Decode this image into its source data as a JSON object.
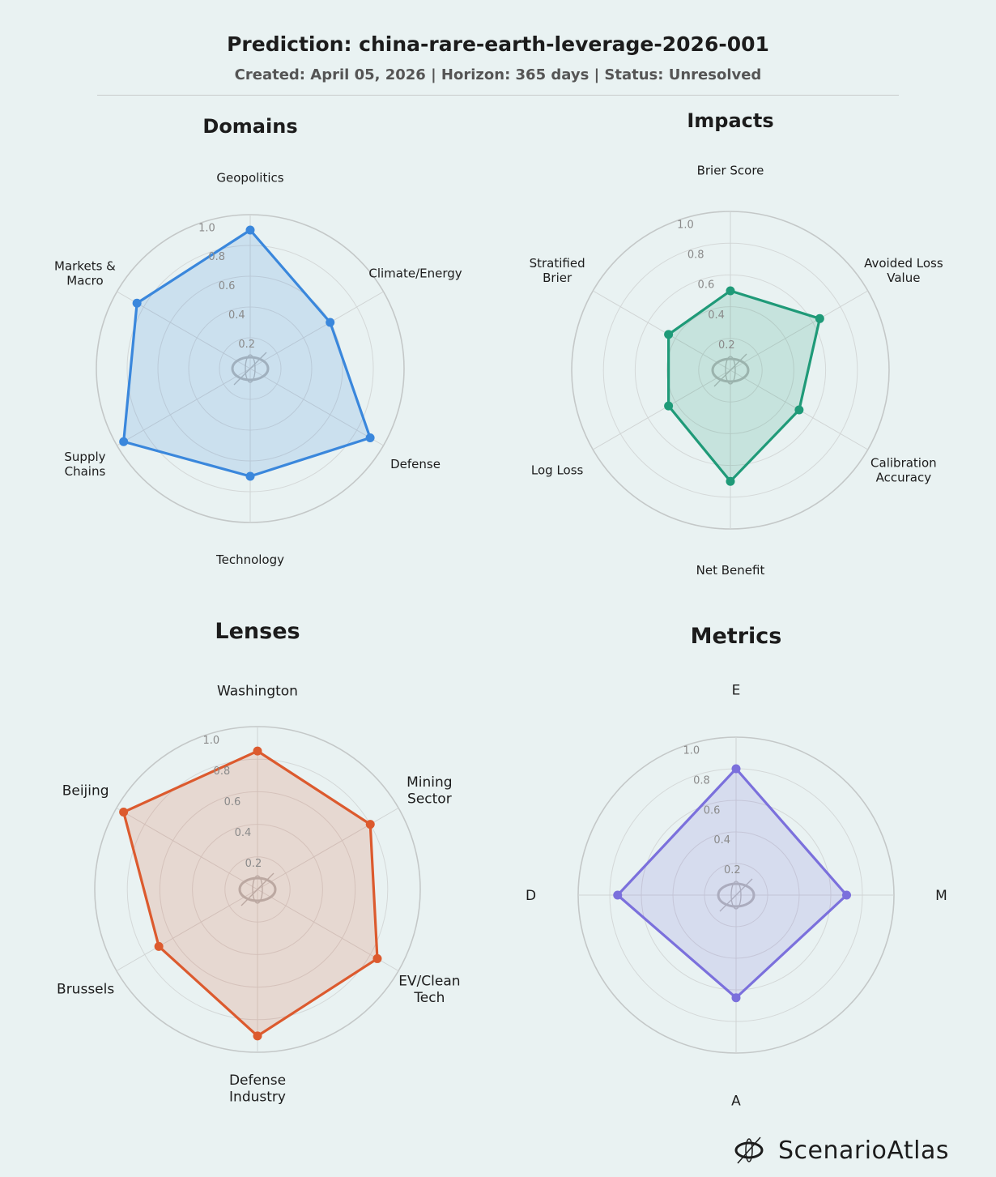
{
  "header": {
    "title": "Prediction: china-rare-earth-leverage-2026-001",
    "subtitle": "Created: April 05, 2026  |  Horizon: 365 days  |  Status: Unresolved"
  },
  "brand": {
    "name": "ScenarioAtlas"
  },
  "chart_data": [
    {
      "type": "radar",
      "title": "Domains",
      "color": "#3a87dc",
      "categories": [
        "Geopolitics",
        "Climate/Energy",
        "Defense",
        "Technology",
        "Supply\nChains",
        "Markets &\nMacro"
      ],
      "values": [
        0.9,
        0.6,
        0.9,
        0.7,
        0.95,
        0.85
      ],
      "rlim": [
        0,
        1
      ],
      "rticks": [
        "0.2",
        "0.4",
        "0.6",
        "0.8",
        "1.0"
      ]
    },
    {
      "type": "radar",
      "title": "Impacts",
      "color": "#1f9a78",
      "categories": [
        "Brier Score",
        "Avoided Loss\nValue",
        "Calibration\nAccuracy",
        "Net Benefit",
        "Log Loss",
        "Stratified\nBrier"
      ],
      "values": [
        0.5,
        0.65,
        0.5,
        0.7,
        0.45,
        0.45
      ],
      "rlim": [
        0,
        1
      ],
      "rticks": [
        "0.2",
        "0.4",
        "0.6",
        "0.8",
        "1.0"
      ]
    },
    {
      "type": "radar",
      "title": "Lenses",
      "color": "#dc5a2e",
      "categories": [
        "Washington",
        "Mining\nSector",
        "EV/Clean\nTech",
        "Defense\nIndustry",
        "Brussels",
        "Beijing"
      ],
      "values": [
        0.85,
        0.8,
        0.85,
        0.9,
        0.7,
        0.95
      ],
      "rlim": [
        0,
        1
      ],
      "rticks": [
        "0.2",
        "0.4",
        "0.6",
        "0.8",
        "1.0"
      ]
    },
    {
      "type": "radar",
      "title": "Metrics",
      "color": "#7b70dc",
      "categories": [
        "E",
        "M",
        "A",
        "D"
      ],
      "values": [
        0.8,
        0.7,
        0.65,
        0.75
      ],
      "rlim": [
        0,
        1
      ],
      "rticks": [
        "0.2",
        "0.4",
        "0.6",
        "0.8",
        "1.0"
      ]
    }
  ]
}
